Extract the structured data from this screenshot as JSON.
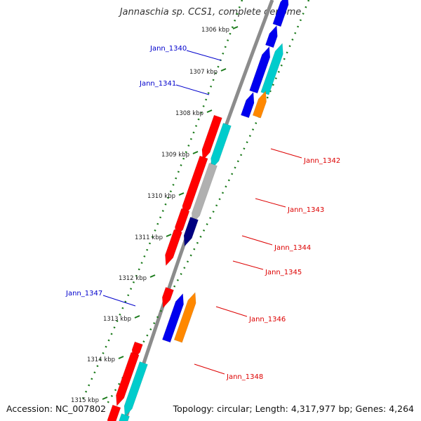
{
  "title": "Jannaschia sp. CCS1, complete genome",
  "footer": {
    "accession": "Accession: NC_007802",
    "summary": "Topology: circular; Length: 4,317,977 bp; Genes: 4,264"
  },
  "ticks": [
    {
      "kbp": 1306,
      "label": "1306 kbp"
    },
    {
      "kbp": 1307,
      "label": "1307 kbp"
    },
    {
      "kbp": 1308,
      "label": "1308 kbp"
    },
    {
      "kbp": 1309,
      "label": "1309 kbp"
    },
    {
      "kbp": 1310,
      "label": "1310 kbp"
    },
    {
      "kbp": 1311,
      "label": "1311 kbp"
    },
    {
      "kbp": 1312,
      "label": "1312 kbp"
    },
    {
      "kbp": 1313,
      "label": "1313 kbp"
    },
    {
      "kbp": 1314,
      "label": "1314 kbp"
    },
    {
      "kbp": 1315,
      "label": "1315 kbp"
    }
  ],
  "colors": {
    "backbone": "#8c8c8c",
    "tick": "#1a7a1a",
    "forward_label": "#0000cc",
    "reverse_label": "#dd0000",
    "cds_forward": "#0000ee",
    "cds_reverse": "#ff0000",
    "cog_cyan": "#00cccc",
    "cog_orange": "#ff8800",
    "cog_navy": "#000080",
    "cog_grey": "#b0b0b0"
  },
  "labels": [
    {
      "text": "Jann_1340",
      "strand": "forward"
    },
    {
      "text": "Jann_1341",
      "strand": "forward"
    },
    {
      "text": "Jann_1342",
      "strand": "reverse"
    },
    {
      "text": "Jann_1343",
      "strand": "reverse"
    },
    {
      "text": "Jann_1344",
      "strand": "reverse"
    },
    {
      "text": "Jann_1345",
      "strand": "reverse"
    },
    {
      "text": "Jann_1346",
      "strand": "reverse"
    },
    {
      "text": "Jann_1347",
      "strand": "forward"
    },
    {
      "text": "Jann_1348",
      "strand": "reverse"
    }
  ]
}
